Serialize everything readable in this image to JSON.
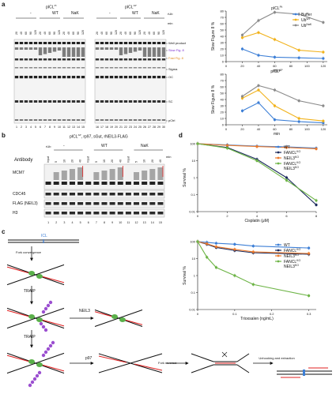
{
  "panels": {
    "a": "a",
    "b": "b",
    "c": "c",
    "d": "d"
  },
  "gels_a": {
    "gel1": {
      "title": "pICL",
      "title_sup": "Pt",
      "group_minus": "-",
      "group_wt": "WT",
      "group_nak": "NaK",
      "timepoints": [
        "20",
        "40",
        "60",
        "90",
        "120"
      ],
      "lanes": [
        "1",
        "2",
        "3",
        "4",
        "5",
        "6",
        "7",
        "8",
        "9",
        "10",
        "11",
        "12",
        "13",
        "14",
        "15"
      ]
    },
    "gel2": {
      "title": "pICL",
      "title_sup": "AP",
      "group_minus": "-",
      "group_wt": "WT",
      "group_nak": "NaK",
      "timepoints": [
        "20",
        "40",
        "60",
        "90",
        "120"
      ],
      "lanes": [
        "16",
        "17",
        "18",
        "19",
        "20",
        "21",
        "22",
        "23",
        "24",
        "25",
        "26",
        "27",
        "28",
        "29",
        "30"
      ]
    },
    "rub_label": "rUb",
    "min_label": "min",
    "band_labels": [
      {
        "text": "Well product",
        "color": "#111"
      },
      {
        "text": "Slow Fig. 8",
        "color": "#7b2fd0"
      },
      {
        "text": "Fast Fig. 8",
        "color": "#e08a1c"
      },
      {
        "text": "Sigma",
        "color": "#111"
      },
      {
        "text": "OC",
        "color": "#111"
      },
      {
        "text": "SC",
        "color": "#111"
      },
      {
        "text": "pCtrl",
        "color": "#111"
      }
    ]
  },
  "gel_b": {
    "title": "pICL",
    "title_sup": "AP",
    "title_rest": ", rp97, sGut, rNEIL3-FLAG",
    "rub_label": "rUb",
    "min_label": "min",
    "antibody_label": "Antibody",
    "group_minus": "-",
    "group_wt": "WT",
    "group_nak": "NaK",
    "input_label": "Input",
    "timepoints": [
      "5",
      "10",
      "20",
      "40"
    ],
    "rows": [
      "MCM7",
      "CDC45",
      "FLAG (NEIL3)",
      "H3"
    ],
    "lanes": [
      "1",
      "2",
      "3",
      "4",
      "5",
      "6",
      "7",
      "8",
      "9",
      "10",
      "11",
      "12",
      "13",
      "14",
      "15"
    ]
  },
  "diagram_c": {
    "icl_label": "ICL",
    "step1": "Fork convergence",
    "step2": "TRAIP",
    "step3": "TRAIP",
    "neil3": "NEIL3",
    "p97": "p97",
    "fork_reversal": "Fork reversal",
    "unhooking": "Unhooking and extraction"
  },
  "chart_data": [
    {
      "type": "line",
      "title": "pICL",
      "title_sup": "Pt",
      "xlabel": "min",
      "ylabel": "Slow Figure 8 %",
      "xlim": [
        0,
        125
      ],
      "ylim": [
        0,
        80
      ],
      "xticks": [
        0,
        20,
        40,
        60,
        80,
        100,
        120
      ],
      "yticks": [
        0,
        10,
        20,
        30,
        40,
        50,
        60,
        70,
        80
      ],
      "legend_position": "top-right",
      "series": [
        {
          "name": "Buffer",
          "color": "#3d7fd6",
          "x": [
            20,
            40,
            60,
            90,
            120
          ],
          "y": [
            20,
            10,
            7,
            6,
            5
          ]
        },
        {
          "name": "Ub",
          "name_sup": "WT",
          "color": "#f1b21b",
          "x": [
            20,
            40,
            60,
            90,
            120
          ],
          "y": [
            38,
            46,
            35,
            18,
            15
          ]
        },
        {
          "name": "Ub",
          "name_sup": "NaK",
          "color": "#8a8a8a",
          "x": [
            20,
            40,
            60,
            90,
            120
          ],
          "y": [
            42,
            65,
            78,
            75,
            62
          ]
        }
      ]
    },
    {
      "type": "line",
      "title": "pICL",
      "title_sup": "AP",
      "xlabel": "min",
      "ylabel": "Slow Figure 8 %",
      "xlim": [
        0,
        125
      ],
      "ylim": [
        0,
        80
      ],
      "xticks": [
        0,
        20,
        40,
        60,
        80,
        100,
        120
      ],
      "yticks": [
        0,
        10,
        20,
        30,
        40,
        50,
        60,
        70,
        80
      ],
      "series": [
        {
          "name": "Buffer",
          "color": "#3d7fd6",
          "x": [
            20,
            40,
            60,
            90,
            120
          ],
          "y": [
            22,
            35,
            8,
            5,
            3
          ]
        },
        {
          "name": "Ub",
          "name_sup": "WT",
          "color": "#f1b21b",
          "x": [
            20,
            40,
            60,
            90,
            120
          ],
          "y": [
            42,
            55,
            30,
            10,
            6
          ]
        },
        {
          "name": "Ub",
          "name_sup": "NaK",
          "color": "#8a8a8a",
          "x": [
            20,
            40,
            60,
            90,
            120
          ],
          "y": [
            45,
            62,
            55,
            38,
            30
          ]
        }
      ]
    },
    {
      "type": "line",
      "xlabel": "Cisplatin (μM)",
      "ylabel": "Survival %",
      "xlim": [
        0,
        8
      ],
      "ylim": [
        0.01,
        100
      ],
      "yscale": "log",
      "xticks": [
        0,
        2,
        4,
        6,
        8
      ],
      "yticks": [
        0.01,
        0.1,
        1,
        10,
        100
      ],
      "yticklabels": [
        "0.01",
        "0.1",
        "1",
        "10",
        "100"
      ],
      "legend_position": "top-right",
      "series": [
        {
          "name": "WT",
          "color": "#3d7fd6",
          "x": [
            0,
            2,
            4,
            6,
            8
          ],
          "y": [
            100,
            85,
            72,
            65,
            55
          ]
        },
        {
          "name": "FANCL",
          "name_sup": "KO",
          "color": "#1b2a5c",
          "x": [
            0,
            2,
            4,
            6,
            8
          ],
          "y": [
            100,
            60,
            12,
            1.0,
            0.025
          ]
        },
        {
          "name": "NEIL3",
          "name_sup": "KO",
          "color": "#ec7a2c",
          "x": [
            0,
            2,
            4,
            6,
            8
          ],
          "y": [
            100,
            80,
            68,
            60,
            50
          ]
        },
        {
          "name": "FANCL",
          "name_sup": "KO",
          "name_line2": "NEIL3",
          "name_line2_sup": "KO",
          "color": "#6db446",
          "x": [
            0,
            2,
            4,
            6,
            8
          ],
          "y": [
            100,
            55,
            10,
            0.7,
            0.045
          ]
        }
      ]
    },
    {
      "type": "line",
      "xlabel": "Trioxsalen (ng/mL)",
      "ylabel": "Survival %",
      "xlim": [
        0,
        0.32
      ],
      "ylim": [
        0.01,
        100
      ],
      "yscale": "log",
      "xticks": [
        0,
        0.1,
        0.2,
        0.3
      ],
      "xticklabels": [
        "0",
        "0.1",
        "0.2",
        "0.3"
      ],
      "yticks": [
        0.01,
        0.1,
        1,
        10,
        100
      ],
      "yticklabels": [
        "0.01",
        "0.1",
        "1",
        "10",
        "100"
      ],
      "legend_position": "top-right",
      "series": [
        {
          "name": "WT",
          "color": "#3d7fd6",
          "x": [
            0,
            0.025,
            0.05,
            0.1,
            0.15,
            0.3
          ],
          "y": [
            100,
            90,
            80,
            70,
            55,
            42
          ]
        },
        {
          "name": "FANCL",
          "name_sup": "KO",
          "color": "#1b2a5c",
          "x": [
            0,
            0.025,
            0.05,
            0.1,
            0.15,
            0.3
          ],
          "y": [
            100,
            70,
            45,
            30,
            22,
            18
          ]
        },
        {
          "name": "NEIL3",
          "name_sup": "KO",
          "color": "#ec7a2c",
          "x": [
            0,
            0.025,
            0.05,
            0.1,
            0.15,
            0.3
          ],
          "y": [
            100,
            75,
            50,
            35,
            25,
            20
          ]
        },
        {
          "name": "FANCL",
          "name_sup": "KO",
          "name_line2": "NEIL3",
          "name_line2_sup": "KO",
          "color": "#6db446",
          "x": [
            0,
            0.025,
            0.05,
            0.1,
            0.15,
            0.3
          ],
          "y": [
            100,
            12,
            3,
            1,
            0.3,
            0.065
          ]
        }
      ]
    }
  ]
}
